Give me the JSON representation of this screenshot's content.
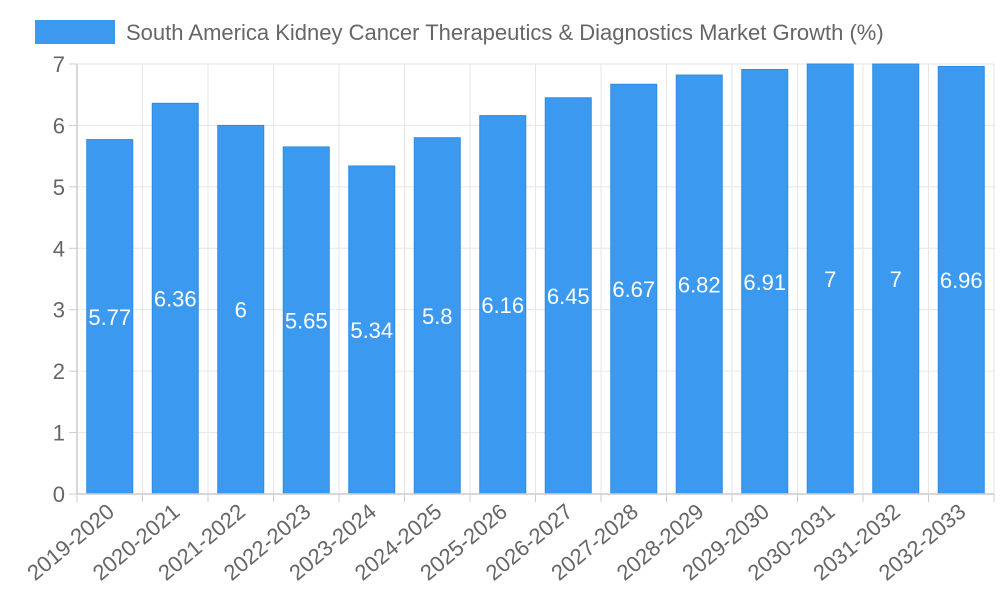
{
  "chart_data": {
    "type": "bar",
    "title": "South America Kidney Cancer Therapeutics & Diagnostics Market Growth (%)",
    "legend": [
      {
        "label": "South America Kidney Cancer Therapeutics & Diagnostics Market Growth (%)",
        "color": "#3b9aef"
      }
    ],
    "legend_position": "top-center",
    "categories": [
      "2019-2020",
      "2020-2021",
      "2021-2022",
      "2022-2023",
      "2023-2024",
      "2024-2025",
      "2025-2026",
      "2026-2027",
      "2027-2028",
      "2028-2029",
      "2029-2030",
      "2030-2031",
      "2031-2032",
      "2032-2033"
    ],
    "series": [
      {
        "name": "South America Kidney Cancer Therapeutics & Diagnostics Market Growth (%)",
        "values": [
          5.77,
          6.36,
          6,
          5.65,
          5.34,
          5.8,
          6.16,
          6.45,
          6.67,
          6.82,
          6.91,
          7,
          7,
          6.96
        ],
        "labels": [
          "5.77",
          "6.36",
          "6",
          "5.65",
          "5.34",
          "5.8",
          "6.16",
          "6.45",
          "6.67",
          "6.82",
          "6.91",
          "7",
          "7",
          "6.96"
        ],
        "color": "#3b9aef",
        "edge_color": "#2f8ae0"
      }
    ],
    "y_ticks": [
      "0",
      "1",
      "2",
      "3",
      "4",
      "5",
      "6",
      "7"
    ],
    "ylim": [
      0,
      7
    ],
    "xlabel": "",
    "ylabel": "",
    "grid": true,
    "colors": {
      "grid": "#e6e6e6",
      "axis": "#cccccc",
      "tick_text": "#666666",
      "bar_label": "#ffffff"
    }
  }
}
